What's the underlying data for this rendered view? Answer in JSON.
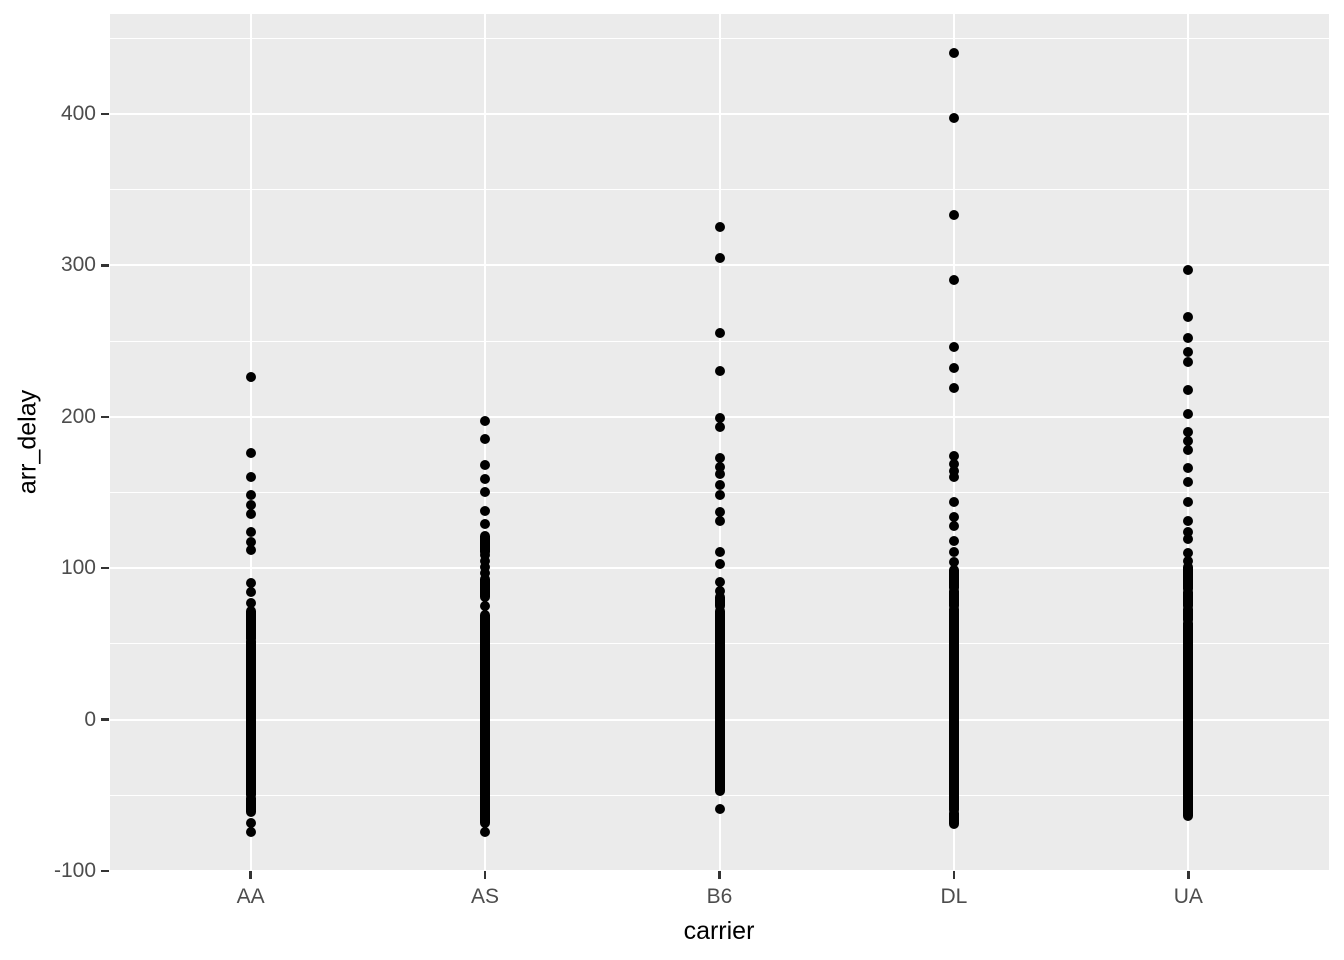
{
  "figure": {
    "background": "#FFFFFF",
    "panel_background": "#EBEBEB",
    "grid_color": "#FFFFFF",
    "point_color": "#000000",
    "axis_text_color": "#4D4D4D",
    "axis_tick_color": "#333333",
    "axis_title_color": "#000000"
  },
  "chart_data": {
    "type": "scatter",
    "title": "",
    "xlabel": "carrier",
    "ylabel": "arr_delay",
    "grid": "on",
    "legend": "none",
    "categories": [
      "AA",
      "AS",
      "B6",
      "DL",
      "UA"
    ],
    "ylim": [
      -100,
      466
    ],
    "y_major_ticks": [
      -100,
      0,
      100,
      200,
      300,
      400
    ],
    "y_major_tick_labels": [
      "-100",
      "0",
      "100",
      "200",
      "300",
      "400"
    ],
    "y_minor_ticks": [
      -50,
      50,
      150,
      250,
      350,
      450
    ],
    "series": [
      {
        "name": "AA",
        "outlier_points": [
          226,
          176,
          160,
          148,
          142,
          136,
          124,
          117,
          112,
          90,
          84,
          77,
          -68,
          -74
        ],
        "dense_ranges": [
          [
            53,
            72
          ],
          [
            -50,
            52
          ],
          [
            -61,
            -52
          ]
        ]
      },
      {
        "name": "AS",
        "outlier_points": [
          197,
          185,
          168,
          159,
          150,
          138,
          129,
          109,
          105,
          101,
          97,
          75,
          -74
        ],
        "dense_ranges": [
          [
            111,
            121
          ],
          [
            81,
            93
          ],
          [
            -68,
            69
          ]
        ]
      },
      {
        "name": "B6",
        "outlier_points": [
          325,
          305,
          255,
          230,
          199,
          193,
          173,
          167,
          162,
          155,
          148,
          137,
          131,
          111,
          103,
          91,
          85,
          -59
        ],
        "dense_ranges": [
          [
            75,
            81
          ],
          [
            -47,
            72
          ]
        ]
      },
      {
        "name": "DL",
        "outlier_points": [
          440,
          397,
          333,
          290,
          246,
          232,
          219,
          174,
          169,
          164,
          160,
          144,
          134,
          128,
          118,
          111,
          104
        ],
        "dense_ranges": [
          [
            87,
            99
          ],
          [
            75,
            85
          ],
          [
            -60,
            73
          ],
          [
            -69,
            -62
          ]
        ]
      },
      {
        "name": "UA",
        "outlier_points": [
          297,
          266,
          252,
          243,
          236,
          218,
          202,
          190,
          184,
          178,
          166,
          157,
          144,
          131,
          124,
          119,
          110,
          105
        ],
        "dense_ranges": [
          [
            86,
            101
          ],
          [
            75,
            84
          ],
          [
            66,
            73
          ],
          [
            -64,
            64
          ]
        ]
      }
    ]
  }
}
